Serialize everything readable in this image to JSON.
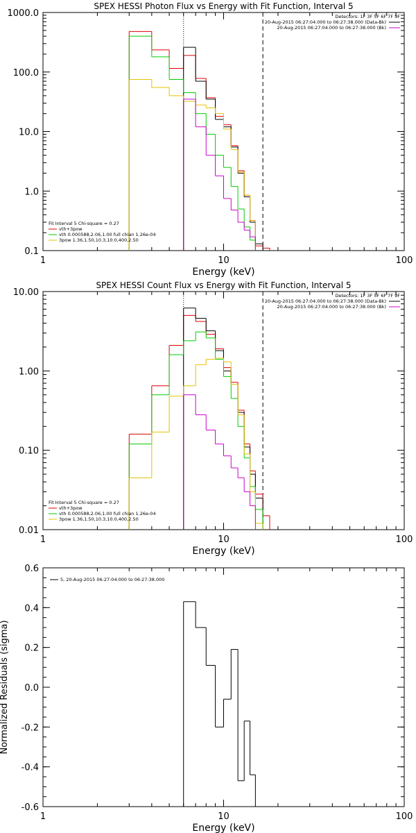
{
  "chart_data": [
    {
      "type": "line",
      "step": true,
      "title": "SPEX HESSI Photon Flux vs Energy with Fit Function, Interval 5",
      "xlabel": "Energy (keV)",
      "ylabel": "",
      "xscale": "log",
      "yscale": "log",
      "xlim": [
        1,
        100
      ],
      "ylim": [
        0.1,
        1000
      ],
      "x_ticks": [
        1,
        10,
        100
      ],
      "x_tick_labels": [
        "1",
        "10",
        "100"
      ],
      "y_ticks": [
        0.1,
        1,
        10,
        100,
        1000
      ],
      "y_tick_labels": [
        "0.1",
        "1.0",
        "10.0",
        "100.0",
        "1000.0"
      ],
      "vlines": [
        {
          "x": 6.0,
          "style": "dotted",
          "color": "#000000"
        },
        {
          "x": 6.0,
          "style": "solid",
          "color": "#cc00cc"
        },
        {
          "x": 16.5,
          "style": "dashed",
          "color": "#000000"
        }
      ],
      "edges": [
        3,
        4,
        5,
        6,
        7,
        8,
        9,
        10,
        11,
        12,
        13,
        14,
        15,
        16.5,
        18
      ],
      "series": [
        {
          "name": "vth+3pow",
          "color": "#dd0000",
          "values": [
            480,
            235,
            115,
            190,
            78,
            37,
            18,
            13,
            5.8,
            2.2,
            0.85,
            0.32,
            0.12,
            0.11
          ]
        },
        {
          "name": "data",
          "color": "#000000",
          "values": [
            null,
            null,
            null,
            260,
            70,
            35,
            16,
            12,
            5.5,
            2.0,
            0.8,
            0.3,
            0.13,
            null
          ]
        },
        {
          "name": "vth 0.000588,2.06,1.00  full chian 1.26e-04",
          "color": "#00cc00",
          "values": [
            400,
            180,
            75,
            45,
            20,
            9,
            4,
            2.5,
            1.2,
            0.5,
            0.25,
            0.15,
            null,
            null
          ]
        },
        {
          "name": "3pow 1.36,1.50,10.3,10.0,400,2.50",
          "color": "#e6c000",
          "values": [
            75,
            55,
            40,
            32,
            28,
            25,
            20,
            11,
            5.0,
            2.1,
            0.85,
            0.32,
            null,
            null
          ]
        },
        {
          "name": "background",
          "color": "#cc00cc",
          "values": [
            null,
            null,
            null,
            35,
            12,
            4,
            1.8,
            0.75,
            0.48,
            0.3,
            0.22,
            0.17,
            null,
            null
          ]
        }
      ],
      "legend_lines": [
        "Fit Interval 5   Chi-square = 0.27",
        "vth+3pow",
        "vth 0.000588,2.06,1.00  full chian 1.26e-04",
        "3pow 1.36,1.50,10.3,10.0,400,2.50"
      ],
      "legend_position": "bottom-left",
      "detectors_text": "Detectors: 1F 3F 5F 6F 7F 9F",
      "detector_legend": [
        {
          "label": "20-Aug-2015 06:27:04.000 to 06:27:38.000 (Data-Bk)",
          "color": "#000000"
        },
        {
          "label": "20-Aug-2015 06:27:04.000 to 06:27:38.000 (Bk)",
          "color": "#cc00cc"
        }
      ],
      "detector_legend_position": "top-right"
    },
    {
      "type": "line",
      "step": true,
      "title": "SPEX HESSI Count Flux vs Energy with Fit Function, Interval 5",
      "xlabel": "Energy (keV)",
      "ylabel": "",
      "xscale": "log",
      "yscale": "log",
      "xlim": [
        1,
        100
      ],
      "ylim": [
        0.01,
        10
      ],
      "x_ticks": [
        1,
        10,
        100
      ],
      "x_tick_labels": [
        "1",
        "10",
        "100"
      ],
      "y_ticks": [
        0.01,
        0.1,
        1,
        10
      ],
      "y_tick_labels": [
        "0.01",
        "0.10",
        "1.00",
        "10.00"
      ],
      "vlines": [
        {
          "x": 6.0,
          "style": "dotted",
          "color": "#000000"
        },
        {
          "x": 6.0,
          "style": "solid",
          "color": "#cc00cc"
        },
        {
          "x": 16.5,
          "style": "dashed",
          "color": "#000000"
        }
      ],
      "edges": [
        3,
        4,
        5,
        6,
        7,
        8,
        9,
        10,
        11,
        12,
        13,
        14,
        15,
        16.5,
        18
      ],
      "series": [
        {
          "name": "vth+3pow",
          "color": "#dd0000",
          "values": [
            0.16,
            0.65,
            2.1,
            5.0,
            4.2,
            2.9,
            1.9,
            1.1,
            0.72,
            0.32,
            0.12,
            0.055,
            0.028,
            0.015
          ]
        },
        {
          "name": "data",
          "color": "#000000",
          "values": [
            null,
            null,
            null,
            6.2,
            4.6,
            3.2,
            1.8,
            1.0,
            0.68,
            0.3,
            0.11,
            0.05,
            0.025,
            null
          ]
        },
        {
          "name": "vth 0.000588,2.06,1.00  full chian 1.26e-04",
          "color": "#00cc00",
          "values": [
            0.12,
            0.5,
            1.6,
            2.4,
            3.1,
            2.6,
            1.4,
            0.85,
            0.45,
            0.2,
            0.08,
            0.035,
            0.018,
            null
          ]
        },
        {
          "name": "3pow 1.36,1.50,10.3,10.0,400,2.50",
          "color": "#e6c000",
          "values": [
            0.045,
            0.17,
            0.48,
            0.65,
            1.2,
            1.4,
            1.45,
            1.3,
            0.68,
            0.28,
            0.09,
            0.03,
            0.012,
            null
          ]
        },
        {
          "name": "background",
          "color": "#cc00cc",
          "values": [
            null,
            null,
            null,
            0.5,
            0.28,
            0.18,
            0.12,
            0.085,
            0.06,
            0.045,
            0.03,
            0.02,
            null,
            null
          ]
        }
      ],
      "legend_lines": [
        "Fit Interval 5   Chi-square = 0.27",
        "vth+3pow",
        "vth 0.000588,2.06,1.00  full chian 1.26e-04",
        "3pow 1.36,1.50,10.3,10.0,400,2.50"
      ],
      "legend_position": "bottom-left",
      "detectors_text": "Detectors: 1F 3F 5F 6F 7F 9F",
      "detector_legend": [
        {
          "label": "20-Aug-2015 06:27:04.000 to 06:27:38.000 (Data-Bk)",
          "color": "#000000"
        },
        {
          "label": "20-Aug-2015 06:27:04.000 to 06:27:38.000 (Bk)",
          "color": "#cc00cc"
        }
      ],
      "detector_legend_position": "top-right"
    },
    {
      "type": "line",
      "step": true,
      "title": "",
      "xlabel": "Energy (keV)",
      "ylabel": "Normalized Residuals (sigma)",
      "xscale": "log",
      "yscale": "linear",
      "xlim": [
        1,
        100
      ],
      "ylim": [
        -0.6,
        0.6
      ],
      "x_ticks": [
        1,
        10,
        100
      ],
      "x_tick_labels": [
        "1",
        "10",
        "100"
      ],
      "y_ticks": [
        -0.6,
        -0.4,
        -0.2,
        0.0,
        0.2,
        0.4,
        0.6
      ],
      "y_tick_labels": [
        "-0.6",
        "-0.4",
        "-0.2",
        "0.0",
        "0.2",
        "0.4",
        "0.6"
      ],
      "edges": [
        6,
        7,
        8,
        9,
        10,
        11,
        12,
        13,
        14,
        15,
        16.5
      ],
      "series": [
        {
          "name": "5, 20-Aug-2015 06:27:04.000 to 06:27:38.000",
          "color": "#000000",
          "values": [
            0.43,
            0.3,
            0.11,
            -0.2,
            -0.06,
            0.19,
            -0.47,
            -0.17,
            -0.44,
            -0.6
          ]
        }
      ],
      "legend_position": "top-left"
    }
  ]
}
